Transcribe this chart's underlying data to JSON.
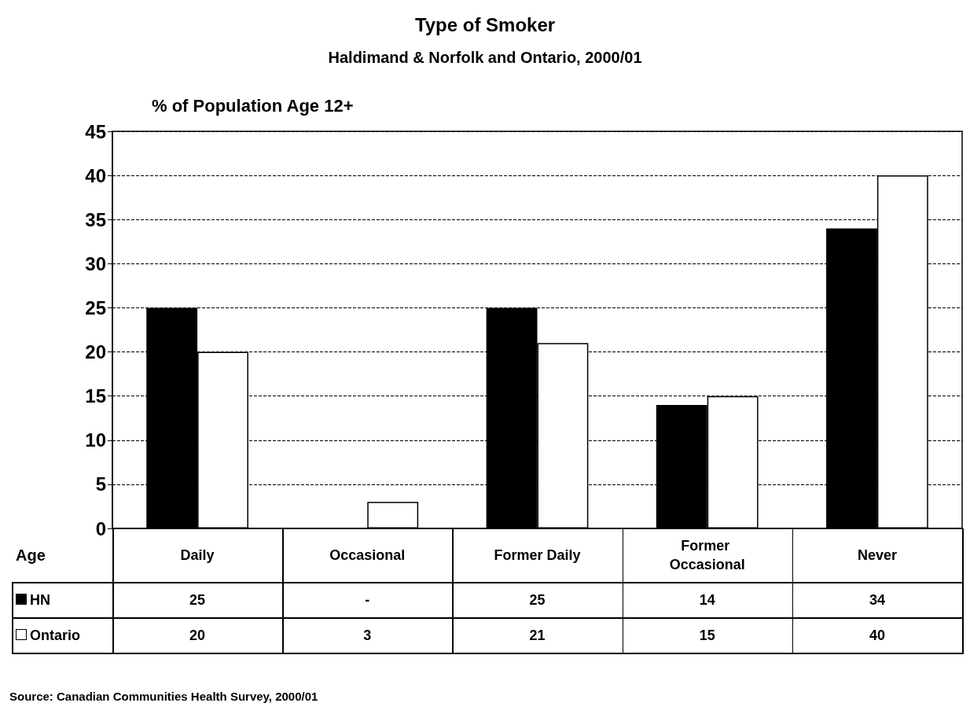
{
  "chart_data": {
    "type": "bar",
    "title": "Type of Smoker",
    "subtitle": "Haldimand & Norfolk and Ontario, 2000/01",
    "ylabel": "% of Population Age 12+",
    "xlabel": "Age",
    "categories": [
      "Daily",
      "Occasional",
      "Former Daily",
      "Former Occasional",
      "Never"
    ],
    "series": [
      {
        "name": "HN",
        "color": "#000000",
        "values": [
          25,
          null,
          25,
          14,
          34
        ],
        "value_labels": [
          "25",
          "-",
          "25",
          "14",
          "34"
        ]
      },
      {
        "name": "Ontario",
        "color": "#ffffff",
        "values": [
          20,
          3,
          21,
          15,
          40
        ],
        "value_labels": [
          "20",
          "3",
          "21",
          "15",
          "40"
        ]
      }
    ],
    "ylim": [
      0,
      45
    ],
    "yticks": [
      0,
      5,
      10,
      15,
      20,
      25,
      30,
      35,
      40,
      45
    ],
    "grid": "y",
    "legend": "bottom",
    "annotations": [
      "Source: Canadian Communities Health Survey, 2000/01"
    ]
  }
}
